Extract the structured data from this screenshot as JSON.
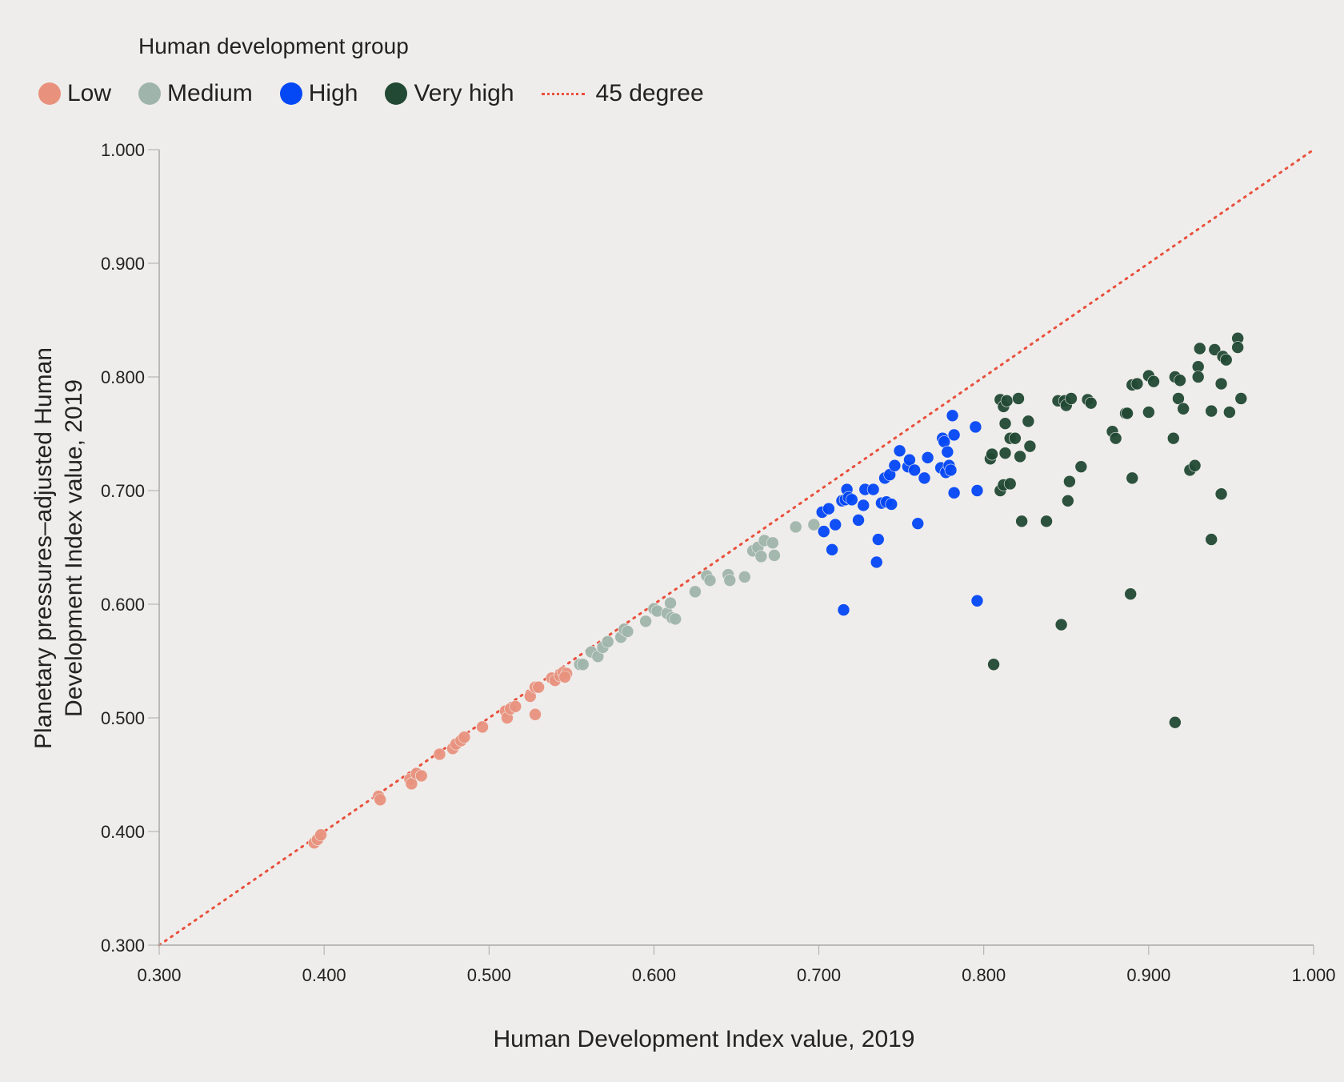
{
  "legend": {
    "title": "Human development group",
    "items": [
      {
        "label": "Low",
        "color": "#e8927e",
        "marker": "circle"
      },
      {
        "label": "Medium",
        "color": "#9fb5ab",
        "marker": "circle"
      },
      {
        "label": "High",
        "color": "#0347f5",
        "marker": "circle"
      },
      {
        "label": "Very high",
        "color": "#214934",
        "marker": "circle"
      },
      {
        "label": "45 degree",
        "color": "#e8503c",
        "marker": "dotted-line"
      }
    ]
  },
  "chart_data": {
    "type": "scatter",
    "title": "",
    "legend_title": "Human development group",
    "xlabel": "Human Development Index value, 2019",
    "ylabel": "Planetary pressures–adjusted Human Development Index value, 2019",
    "xlim": [
      0.3,
      1.0
    ],
    "ylim": [
      0.3,
      1.0
    ],
    "xticks": [
      "0.300",
      "0.400",
      "0.500",
      "0.600",
      "0.700",
      "0.800",
      "0.900",
      "1.000"
    ],
    "yticks": [
      "0.300",
      "0.400",
      "0.500",
      "0.600",
      "0.700",
      "0.800",
      "0.900",
      "1.000"
    ],
    "grid": false,
    "legend_position": "top",
    "reference_line": {
      "name": "45 degree",
      "from": [
        0.3,
        0.3
      ],
      "to": [
        1.0,
        1.0
      ],
      "style": "dotted",
      "color": "#e8503c"
    },
    "series": [
      {
        "name": "Low",
        "color": "#e8927e",
        "points": [
          [
            0.394,
            0.39
          ],
          [
            0.396,
            0.393
          ],
          [
            0.398,
            0.397
          ],
          [
            0.433,
            0.431
          ],
          [
            0.434,
            0.428
          ],
          [
            0.452,
            0.446
          ],
          [
            0.453,
            0.442
          ],
          [
            0.456,
            0.451
          ],
          [
            0.459,
            0.449
          ],
          [
            0.47,
            0.468
          ],
          [
            0.478,
            0.473
          ],
          [
            0.48,
            0.477
          ],
          [
            0.483,
            0.48
          ],
          [
            0.485,
            0.483
          ],
          [
            0.496,
            0.492
          ],
          [
            0.51,
            0.506
          ],
          [
            0.511,
            0.5
          ],
          [
            0.513,
            0.508
          ],
          [
            0.516,
            0.51
          ],
          [
            0.525,
            0.519
          ],
          [
            0.528,
            0.527
          ],
          [
            0.53,
            0.527
          ],
          [
            0.528,
            0.503
          ],
          [
            0.538,
            0.535
          ],
          [
            0.54,
            0.533
          ],
          [
            0.543,
            0.537
          ],
          [
            0.545,
            0.54
          ],
          [
            0.547,
            0.539
          ],
          [
            0.546,
            0.536
          ]
        ]
      },
      {
        "name": "Medium",
        "color": "#9fb5ab",
        "points": [
          [
            0.555,
            0.547
          ],
          [
            0.557,
            0.547
          ],
          [
            0.562,
            0.558
          ],
          [
            0.566,
            0.554
          ],
          [
            0.569,
            0.562
          ],
          [
            0.572,
            0.567
          ],
          [
            0.58,
            0.571
          ],
          [
            0.582,
            0.578
          ],
          [
            0.584,
            0.576
          ],
          [
            0.595,
            0.585
          ],
          [
            0.6,
            0.596
          ],
          [
            0.602,
            0.594
          ],
          [
            0.608,
            0.592
          ],
          [
            0.61,
            0.601
          ],
          [
            0.611,
            0.588
          ],
          [
            0.613,
            0.587
          ],
          [
            0.625,
            0.611
          ],
          [
            0.632,
            0.625
          ],
          [
            0.634,
            0.621
          ],
          [
            0.645,
            0.626
          ],
          [
            0.646,
            0.621
          ],
          [
            0.655,
            0.624
          ],
          [
            0.66,
            0.647
          ],
          [
            0.663,
            0.65
          ],
          [
            0.665,
            0.642
          ],
          [
            0.667,
            0.656
          ],
          [
            0.672,
            0.654
          ],
          [
            0.673,
            0.643
          ],
          [
            0.686,
            0.668
          ],
          [
            0.697,
            0.67
          ]
        ]
      },
      {
        "name": "High",
        "color": "#0347f5",
        "points": [
          [
            0.702,
            0.681
          ],
          [
            0.703,
            0.664
          ],
          [
            0.706,
            0.684
          ],
          [
            0.708,
            0.648
          ],
          [
            0.71,
            0.67
          ],
          [
            0.714,
            0.691
          ],
          [
            0.715,
            0.595
          ],
          [
            0.716,
            0.692
          ],
          [
            0.717,
            0.701
          ],
          [
            0.718,
            0.694
          ],
          [
            0.72,
            0.692
          ],
          [
            0.724,
            0.674
          ],
          [
            0.727,
            0.687
          ],
          [
            0.728,
            0.701
          ],
          [
            0.733,
            0.701
          ],
          [
            0.735,
            0.637
          ],
          [
            0.736,
            0.657
          ],
          [
            0.738,
            0.689
          ],
          [
            0.74,
            0.711
          ],
          [
            0.741,
            0.69
          ],
          [
            0.743,
            0.714
          ],
          [
            0.744,
            0.688
          ],
          [
            0.746,
            0.722
          ],
          [
            0.749,
            0.735
          ],
          [
            0.754,
            0.721
          ],
          [
            0.755,
            0.727
          ],
          [
            0.758,
            0.718
          ],
          [
            0.76,
            0.671
          ],
          [
            0.764,
            0.711
          ],
          [
            0.766,
            0.729
          ],
          [
            0.774,
            0.72
          ],
          [
            0.775,
            0.746
          ],
          [
            0.776,
            0.743
          ],
          [
            0.777,
            0.716
          ],
          [
            0.778,
            0.734
          ],
          [
            0.779,
            0.722
          ],
          [
            0.78,
            0.718
          ],
          [
            0.781,
            0.766
          ],
          [
            0.782,
            0.749
          ],
          [
            0.782,
            0.698
          ],
          [
            0.795,
            0.756
          ],
          [
            0.796,
            0.7
          ],
          [
            0.796,
            0.603
          ]
        ]
      },
      {
        "name": "Very high",
        "color": "#214934",
        "points": [
          [
            0.804,
            0.728
          ],
          [
            0.805,
            0.732
          ],
          [
            0.806,
            0.547
          ],
          [
            0.81,
            0.7
          ],
          [
            0.81,
            0.78
          ],
          [
            0.812,
            0.774
          ],
          [
            0.812,
            0.705
          ],
          [
            0.813,
            0.759
          ],
          [
            0.813,
            0.733
          ],
          [
            0.814,
            0.779
          ],
          [
            0.816,
            0.706
          ],
          [
            0.816,
            0.746
          ],
          [
            0.819,
            0.746
          ],
          [
            0.821,
            0.781
          ],
          [
            0.822,
            0.73
          ],
          [
            0.823,
            0.673
          ],
          [
            0.827,
            0.761
          ],
          [
            0.828,
            0.739
          ],
          [
            0.838,
            0.673
          ],
          [
            0.845,
            0.779
          ],
          [
            0.847,
            0.582
          ],
          [
            0.849,
            0.779
          ],
          [
            0.85,
            0.775
          ],
          [
            0.851,
            0.691
          ],
          [
            0.852,
            0.708
          ],
          [
            0.853,
            0.781
          ],
          [
            0.859,
            0.721
          ],
          [
            0.863,
            0.78
          ],
          [
            0.865,
            0.777
          ],
          [
            0.878,
            0.752
          ],
          [
            0.88,
            0.746
          ],
          [
            0.886,
            0.768
          ],
          [
            0.887,
            0.768
          ],
          [
            0.889,
            0.609
          ],
          [
            0.89,
            0.793
          ],
          [
            0.89,
            0.711
          ],
          [
            0.893,
            0.794
          ],
          [
            0.9,
            0.801
          ],
          [
            0.9,
            0.769
          ],
          [
            0.903,
            0.796
          ],
          [
            0.915,
            0.746
          ],
          [
            0.916,
            0.8
          ],
          [
            0.916,
            0.496
          ],
          [
            0.918,
            0.781
          ],
          [
            0.919,
            0.797
          ],
          [
            0.921,
            0.772
          ],
          [
            0.925,
            0.718
          ],
          [
            0.928,
            0.722
          ],
          [
            0.93,
            0.809
          ],
          [
            0.93,
            0.8
          ],
          [
            0.931,
            0.825
          ],
          [
            0.938,
            0.657
          ],
          [
            0.938,
            0.77
          ],
          [
            0.94,
            0.824
          ],
          [
            0.944,
            0.794
          ],
          [
            0.944,
            0.697
          ],
          [
            0.945,
            0.818
          ],
          [
            0.947,
            0.815
          ],
          [
            0.949,
            0.769
          ],
          [
            0.954,
            0.834
          ],
          [
            0.954,
            0.826
          ],
          [
            0.956,
            0.781
          ]
        ]
      }
    ]
  }
}
